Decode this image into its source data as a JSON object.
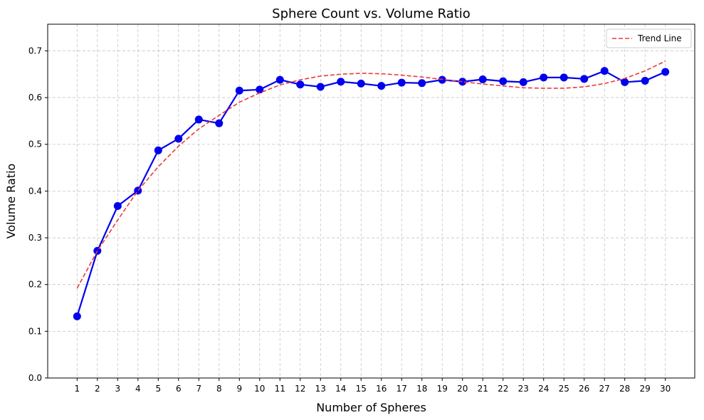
{
  "chart_data": {
    "type": "line",
    "title": "Sphere Count vs. Volume Ratio",
    "xlabel": "Number of Spheres",
    "ylabel": "Volume Ratio",
    "x": [
      1,
      2,
      3,
      4,
      5,
      6,
      7,
      8,
      9,
      10,
      11,
      12,
      13,
      14,
      15,
      16,
      17,
      18,
      19,
      20,
      21,
      22,
      23,
      24,
      25,
      26,
      27,
      28,
      29,
      30
    ],
    "xlim": [
      -0.45,
      31.45
    ],
    "ylim": [
      0,
      0.757
    ],
    "yticks": [
      0.0,
      0.1,
      0.2,
      0.3,
      0.4,
      0.5,
      0.6,
      0.7
    ],
    "ytick_labels": [
      "0.0",
      "0.1",
      "0.2",
      "0.3",
      "0.4",
      "0.5",
      "0.6",
      "0.7"
    ],
    "grid": true,
    "legend_position": "top-right",
    "series": [
      {
        "role": "observed",
        "color": "#0000ee",
        "marker": "circle",
        "values": [
          0.132,
          0.272,
          0.368,
          0.401,
          0.487,
          0.512,
          0.553,
          0.545,
          0.615,
          0.617,
          0.638,
          0.628,
          0.623,
          0.634,
          0.63,
          0.625,
          0.632,
          0.631,
          0.638,
          0.634,
          0.639,
          0.635,
          0.633,
          0.643,
          0.643,
          0.64,
          0.657,
          0.633,
          0.636,
          0.655
        ]
      },
      {
        "name": "Trend Line",
        "color": "#e83c3c",
        "style": "dashed",
        "values": [
          0.192,
          0.272,
          0.338,
          0.401,
          0.452,
          0.496,
          0.533,
          0.562,
          0.59,
          0.61,
          0.627,
          0.638,
          0.646,
          0.65,
          0.652,
          0.651,
          0.648,
          0.644,
          0.639,
          0.634,
          0.629,
          0.625,
          0.621,
          0.62,
          0.62,
          0.623,
          0.63,
          0.641,
          0.657,
          0.678
        ]
      }
    ]
  }
}
